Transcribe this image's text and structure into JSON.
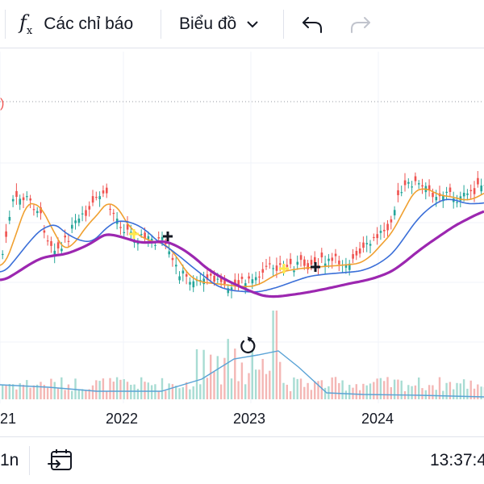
{
  "toolbar": {
    "indicators_label": "Các chỉ báo",
    "chart_type_label": "Biểu đồ",
    "fx_icon": "function-icon",
    "undo_icon": "undo-icon",
    "redo_icon": "redo-icon"
  },
  "chart_data": {
    "type": "candlestick",
    "x_tick_labels": [
      "21",
      "2022",
      "2023",
      "2024"
    ],
    "partial_label": ")",
    "grid": true,
    "series": [
      {
        "color": "#26a69a"
      },
      {
        "color": "#ef5350"
      },
      {
        "color": "#f0a030"
      },
      {
        "color": "#3b6fd8"
      },
      {
        "color": "#9c27b0"
      },
      {
        "color": "#5aa3d6"
      }
    ]
  },
  "bottom": {
    "interval_label": "1n",
    "time": "13:37:4",
    "calendar_icon": "calendar-goto-icon"
  }
}
